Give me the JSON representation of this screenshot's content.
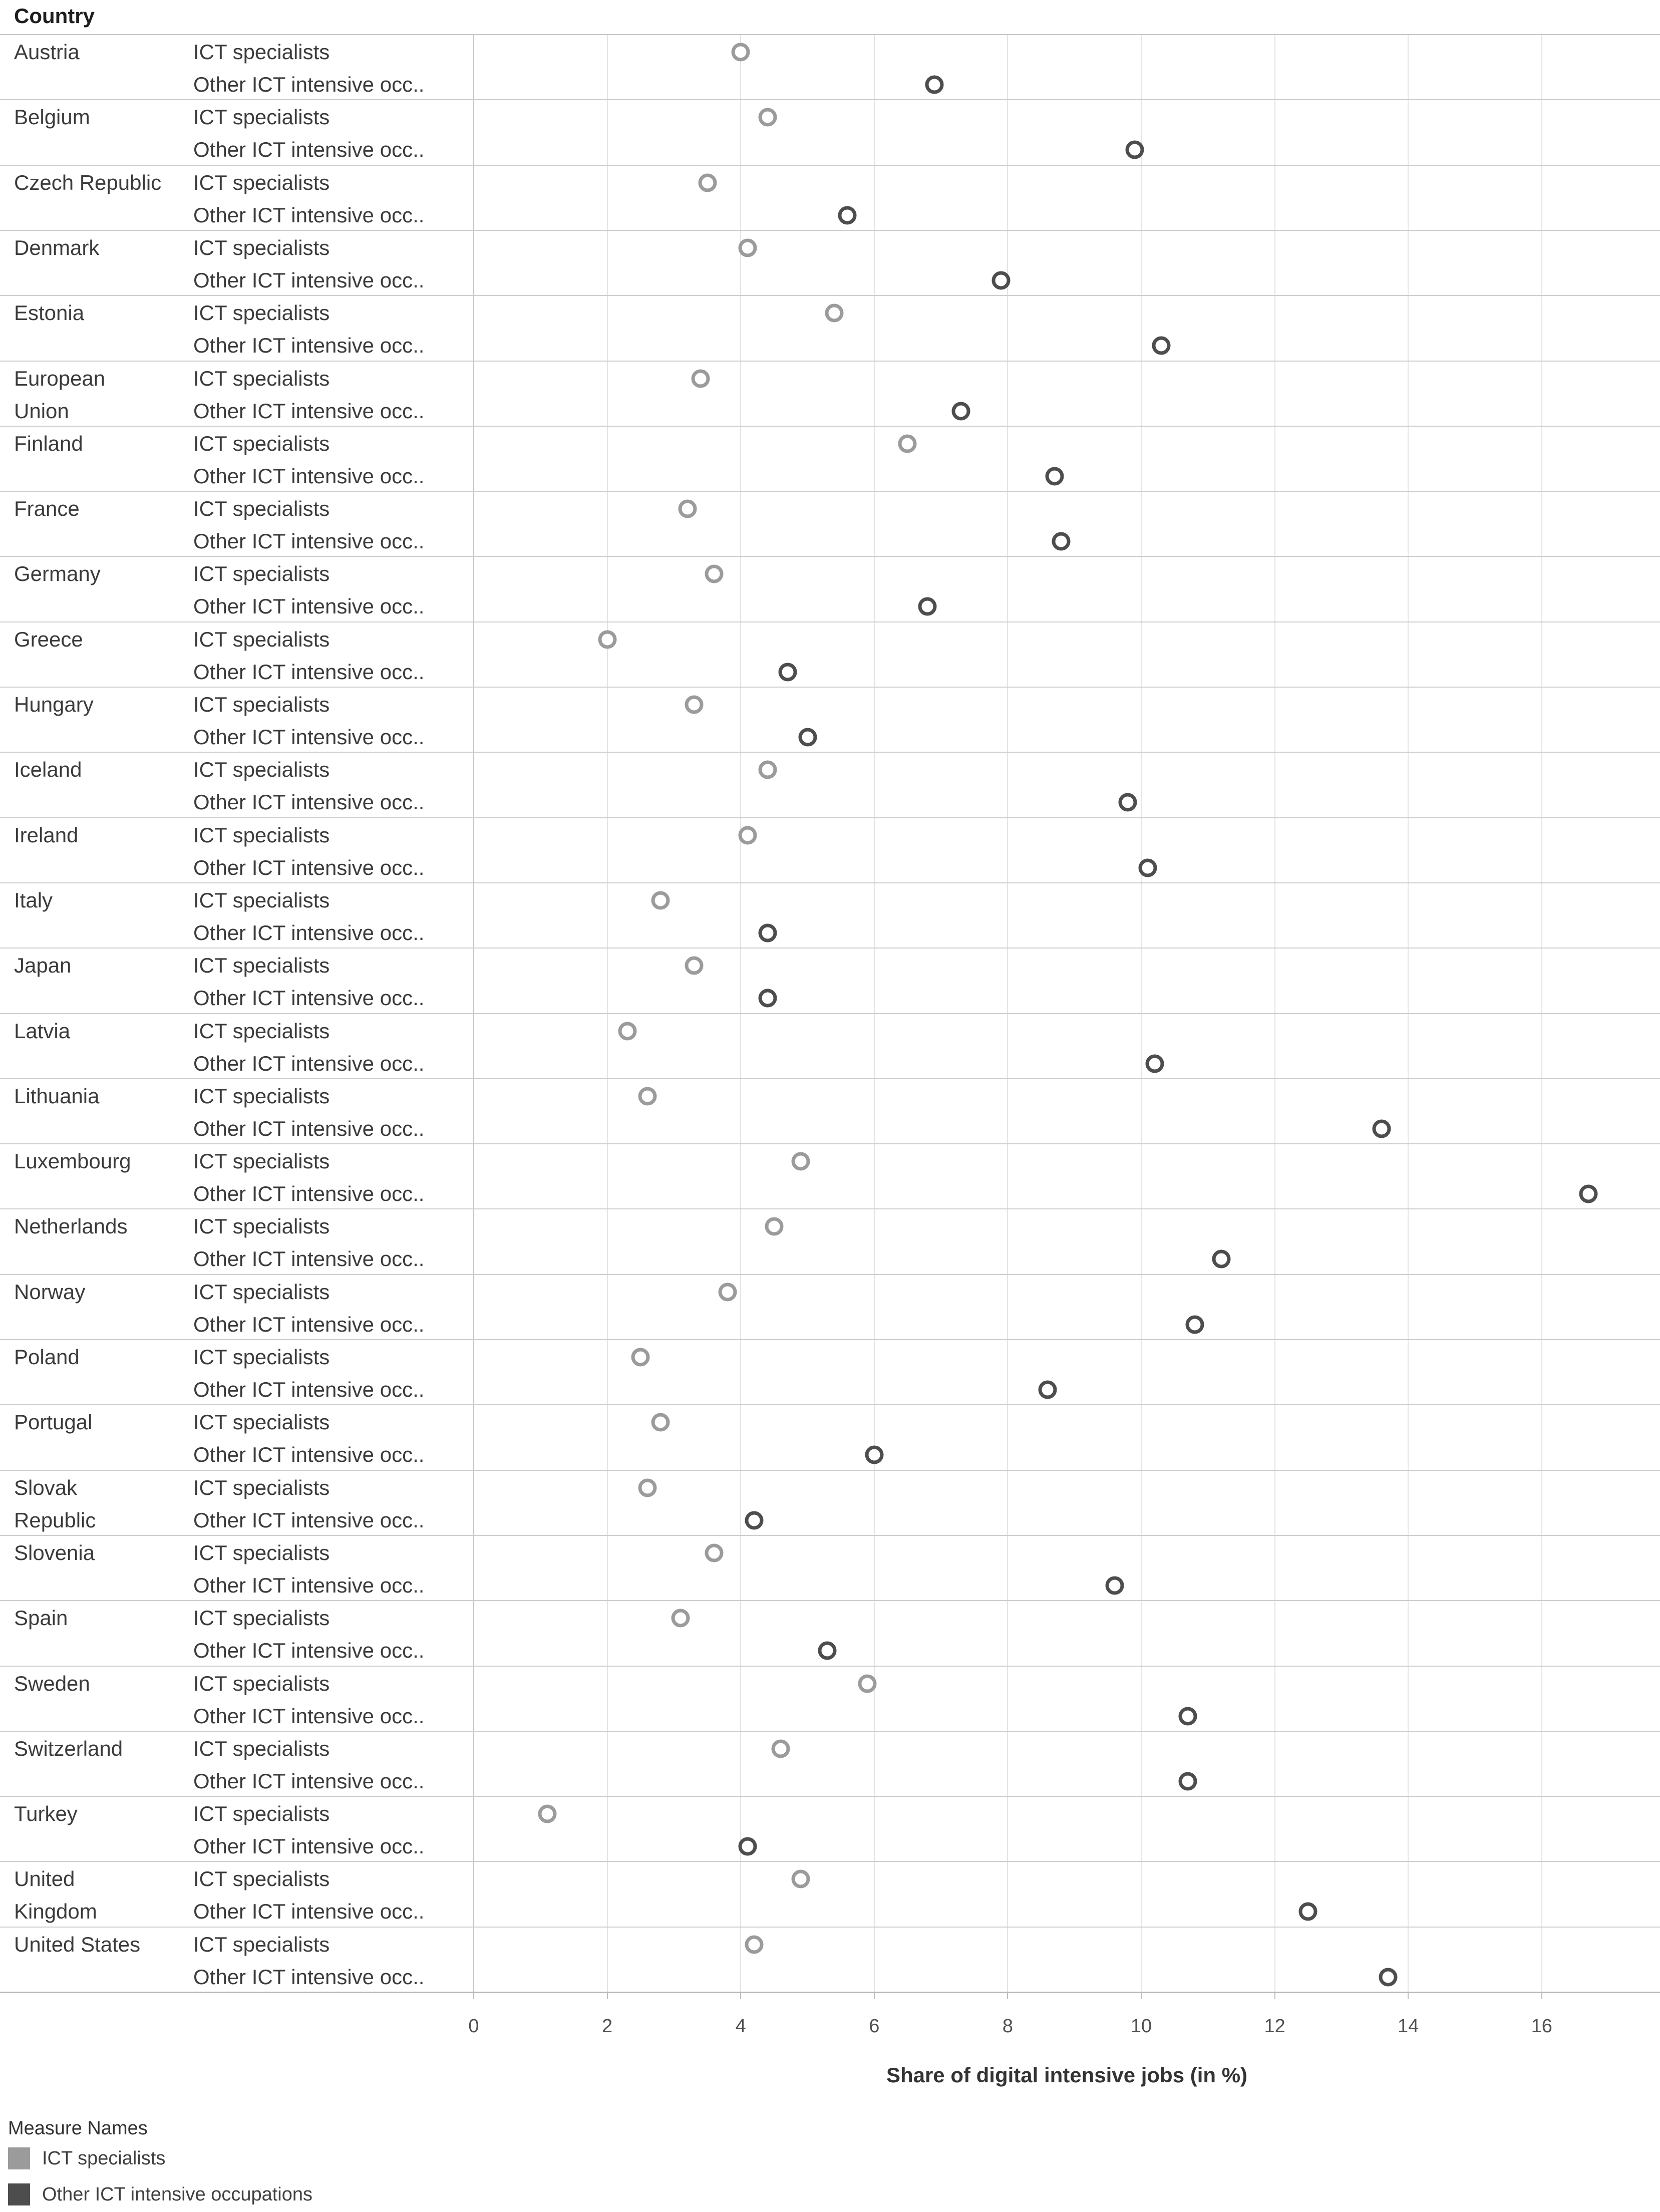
{
  "header": {
    "country_label": "Country"
  },
  "row_labels": {
    "ict": "ICT specialists",
    "other": "Other ICT intensive occ.."
  },
  "axis": {
    "title": "Share of digital intensive jobs (in %)",
    "ticks": [
      0,
      2,
      4,
      6,
      8,
      10,
      12,
      14,
      16
    ]
  },
  "legend": {
    "title": "Measure Names",
    "items": [
      {
        "label": "ICT specialists",
        "color": "#9b9b9b"
      },
      {
        "label": "Other ICT intensive occupations",
        "color": "#4d4d4d"
      }
    ]
  },
  "chart_data": {
    "type": "scatter",
    "title": "",
    "xlabel": "Share of digital intensive jobs (in %)",
    "ylabel": "Country",
    "xlim": [
      0,
      17.8
    ],
    "x_ticks": [
      0,
      2,
      4,
      6,
      8,
      10,
      12,
      14,
      16
    ],
    "grid": "vertical-only",
    "legend_position": "bottom-left",
    "marker_style": "open-circle",
    "categories": [
      "Austria",
      "Belgium",
      "Czech Republic",
      "Denmark",
      "Estonia",
      "European Union",
      "Finland",
      "France",
      "Germany",
      "Greece",
      "Hungary",
      "Iceland",
      "Ireland",
      "Italy",
      "Japan",
      "Latvia",
      "Lithuania",
      "Luxembourg",
      "Netherlands",
      "Norway",
      "Poland",
      "Portugal",
      "Slovak Republic",
      "Slovenia",
      "Spain",
      "Sweden",
      "Switzerland",
      "Turkey",
      "United Kingdom",
      "United States"
    ],
    "category_label_lines": [
      [
        "Austria"
      ],
      [
        "Belgium"
      ],
      [
        "Czech Republic"
      ],
      [
        "Denmark"
      ],
      [
        "Estonia"
      ],
      [
        "European",
        "Union"
      ],
      [
        "Finland"
      ],
      [
        "France"
      ],
      [
        "Germany"
      ],
      [
        "Greece"
      ],
      [
        "Hungary"
      ],
      [
        "Iceland"
      ],
      [
        "Ireland"
      ],
      [
        "Italy"
      ],
      [
        "Japan"
      ],
      [
        "Latvia"
      ],
      [
        "Lithuania"
      ],
      [
        "Luxembourg"
      ],
      [
        "Netherlands"
      ],
      [
        "Norway"
      ],
      [
        "Poland"
      ],
      [
        "Portugal"
      ],
      [
        "Slovak",
        "Republic"
      ],
      [
        "Slovenia"
      ],
      [
        "Spain"
      ],
      [
        "Sweden"
      ],
      [
        "Switzerland"
      ],
      [
        "Turkey"
      ],
      [
        "United",
        "Kingdom"
      ],
      [
        "United States"
      ]
    ],
    "series": [
      {
        "name": "ICT specialists",
        "color": "#9b9b9b",
        "values": [
          4.0,
          4.4,
          3.5,
          4.1,
          5.4,
          3.4,
          6.5,
          3.2,
          3.6,
          2.0,
          3.3,
          4.4,
          4.1,
          2.8,
          3.3,
          2.3,
          2.6,
          4.9,
          4.5,
          3.8,
          2.5,
          2.8,
          2.6,
          3.6,
          3.1,
          5.9,
          4.6,
          1.1,
          4.9,
          4.2
        ]
      },
      {
        "name": "Other ICT intensive occupations",
        "color": "#4d4d4d",
        "values": [
          6.9,
          9.9,
          5.6,
          7.9,
          10.3,
          7.3,
          8.7,
          8.8,
          6.8,
          4.7,
          5.0,
          9.8,
          10.1,
          4.4,
          4.4,
          10.2,
          13.6,
          16.7,
          11.2,
          10.8,
          8.6,
          6.0,
          4.2,
          9.6,
          5.3,
          10.7,
          10.7,
          4.1,
          12.5,
          13.7
        ]
      }
    ]
  }
}
